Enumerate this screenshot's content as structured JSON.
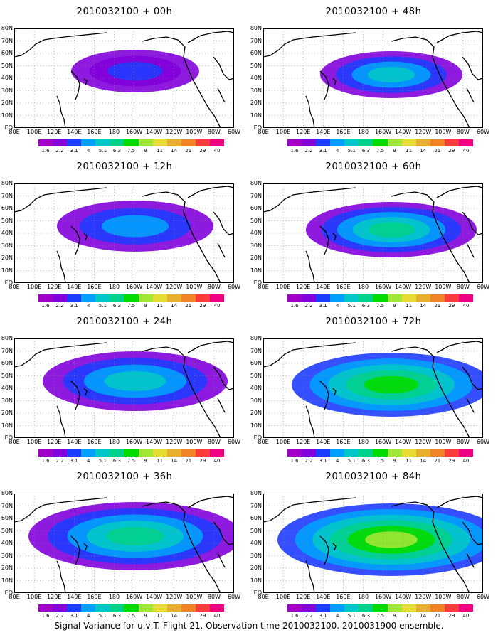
{
  "panels": [
    {
      "title": "2010032100 + 00h"
    },
    {
      "title": "2010032100 + 48h"
    },
    {
      "title": "2010032100 + 12h"
    },
    {
      "title": "2010032100 + 60h"
    },
    {
      "title": "2010032100 + 24h"
    },
    {
      "title": "2010032100 + 72h"
    },
    {
      "title": "2010032100 + 36h"
    },
    {
      "title": "2010032100 + 84h"
    }
  ],
  "lat_labels": [
    "80N",
    "70N",
    "60N",
    "50N",
    "40N",
    "30N",
    "20N",
    "10N",
    "EQ"
  ],
  "lon_labels": [
    "80E",
    "100E",
    "120E",
    "140E",
    "160E",
    "180",
    "160W",
    "140W",
    "120W",
    "100W",
    "80W",
    "60W"
  ],
  "colorbar": {
    "labels": [
      "1.6",
      "2.2",
      "3.1",
      "4",
      "5.1",
      "6.3",
      "7.5",
      "9",
      "11",
      "14",
      "21",
      "29",
      "40"
    ],
    "colors": [
      "#a000c8",
      "#8200dc",
      "#1e3cff",
      "#00a0ff",
      "#00c8c8",
      "#00d28c",
      "#00dc00",
      "#a0e632",
      "#e6dc32",
      "#e6af2d",
      "#f08228",
      "#fa3c3c",
      "#f00082"
    ]
  },
  "caption": "Signal Variance for u,v,T. Flight 21. Observation time 2010032100. 2010031900 ensemble."
}
